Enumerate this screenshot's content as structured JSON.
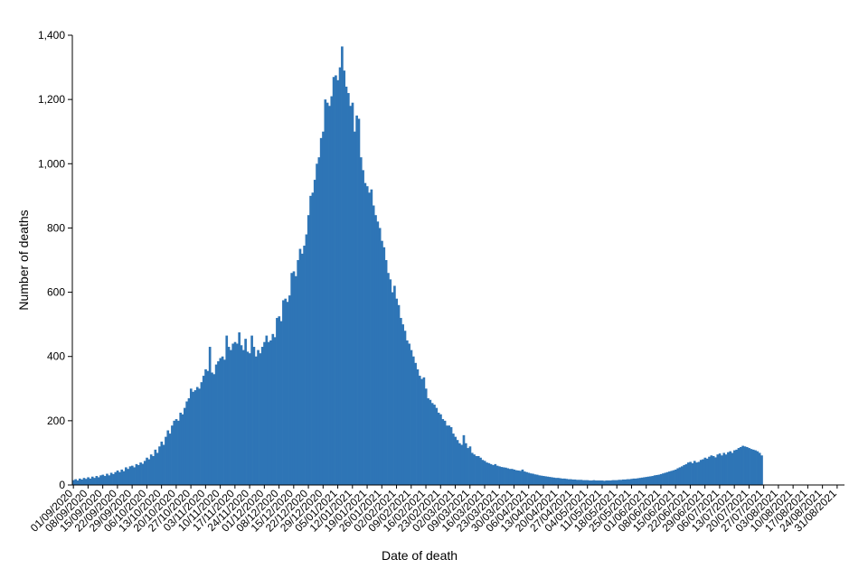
{
  "chart_data": {
    "type": "bar",
    "title": "",
    "xlabel": "Date of death",
    "ylabel": "Number of deaths",
    "ylim": [
      0,
      1400
    ],
    "yticks": [
      0,
      200,
      400,
      600,
      800,
      1000,
      1200,
      1400
    ],
    "ytick_labels": [
      "0",
      "200",
      "400",
      "600",
      "800",
      "1,000",
      "1,200",
      "1,400"
    ],
    "grid": false,
    "legend": "none",
    "bar_color": "#2e75b6",
    "x_start": "2020-09-01",
    "x_end": "2021-09-03",
    "x_tick_labels": [
      "01/09/2020",
      "08/09/2020",
      "15/09/2020",
      "22/09/2020",
      "29/09/2020",
      "06/10/2020",
      "13/10/2020",
      "20/10/2020",
      "27/10/2020",
      "03/11/2020",
      "10/11/2020",
      "17/11/2020",
      "24/11/2020",
      "01/12/2020",
      "08/12/2020",
      "15/12/2020",
      "22/12/2020",
      "29/12/2020",
      "05/01/2021",
      "12/01/2021",
      "19/01/2021",
      "26/01/2021",
      "02/02/2021",
      "09/02/2021",
      "16/02/2021",
      "23/02/2021",
      "02/03/2021",
      "09/03/2021",
      "16/03/2021",
      "23/03/2021",
      "30/03/2021",
      "06/04/2021",
      "13/04/2021",
      "20/04/2021",
      "27/04/2021",
      "04/05/2021",
      "11/05/2021",
      "18/05/2021",
      "25/05/2021",
      "01/06/2021",
      "08/06/2021",
      "15/06/2021",
      "22/06/2021",
      "29/06/2021",
      "06/07/2021",
      "13/07/2021",
      "20/07/2021",
      "27/07/2021",
      "03/08/2021",
      "10/08/2021",
      "17/08/2021",
      "24/08/2021",
      "31/08/2021"
    ],
    "values": [
      15,
      18,
      14,
      20,
      17,
      22,
      19,
      24,
      20,
      26,
      22,
      28,
      24,
      30,
      32,
      28,
      35,
      30,
      38,
      34,
      40,
      45,
      40,
      48,
      43,
      55,
      50,
      58,
      60,
      55,
      65,
      62,
      70,
      66,
      75,
      85,
      80,
      95,
      90,
      110,
      100,
      120,
      135,
      125,
      150,
      170,
      160,
      185,
      200,
      205,
      200,
      225,
      220,
      240,
      260,
      270,
      300,
      290,
      295,
      305,
      300,
      320,
      340,
      360,
      355,
      430,
      350,
      345,
      375,
      385,
      395,
      400,
      390,
      465,
      430,
      420,
      440,
      445,
      440,
      475,
      435,
      420,
      455,
      415,
      410,
      465,
      430,
      400,
      420,
      410,
      430,
      445,
      465,
      445,
      450,
      470,
      460,
      520,
      525,
      510,
      575,
      580,
      570,
      590,
      660,
      665,
      650,
      700,
      735,
      720,
      745,
      780,
      840,
      900,
      910,
      950,
      1000,
      1020,
      1080,
      1100,
      1200,
      1190,
      1180,
      1210,
      1270,
      1275,
      1260,
      1300,
      1365,
      1290,
      1240,
      1220,
      1180,
      1190,
      1100,
      1150,
      1140,
      1020,
      980,
      940,
      930,
      910,
      920,
      870,
      840,
      820,
      800,
      760,
      740,
      700,
      660,
      640,
      600,
      620,
      580,
      560,
      520,
      500,
      480,
      450,
      440,
      420,
      400,
      380,
      360,
      340,
      330,
      335,
      300,
      270,
      265,
      255,
      250,
      240,
      225,
      220,
      205,
      200,
      185,
      185,
      180,
      160,
      150,
      140,
      130,
      125,
      155,
      130,
      115,
      120,
      100,
      95,
      90,
      90,
      85,
      78,
      75,
      70,
      68,
      65,
      62,
      65,
      60,
      58,
      56,
      55,
      54,
      52,
      50,
      50,
      48,
      46,
      45,
      44,
      48,
      42,
      40,
      38,
      36,
      35,
      33,
      32,
      30,
      29,
      28,
      27,
      26,
      25,
      24,
      23,
      22,
      22,
      21,
      20,
      20,
      19,
      18,
      18,
      17,
      17,
      16,
      16,
      16,
      15,
      15,
      15,
      14,
      14,
      15,
      14,
      14,
      14,
      14,
      13,
      14,
      14,
      14,
      15,
      15,
      15,
      16,
      16,
      17,
      17,
      18,
      18,
      19,
      20,
      20,
      21,
      22,
      23,
      24,
      25,
      26,
      27,
      28,
      30,
      31,
      32,
      34,
      36,
      38,
      40,
      42,
      44,
      46,
      48,
      52,
      55,
      58,
      62,
      65,
      70,
      72,
      68,
      75,
      70,
      72,
      78,
      80,
      85,
      82,
      88,
      92,
      90,
      86,
      95,
      98,
      92,
      100,
      95,
      102,
      105,
      100,
      108,
      110,
      115,
      118,
      122,
      120,
      118,
      115,
      112,
      110,
      108,
      105,
      100,
      92
    ]
  }
}
